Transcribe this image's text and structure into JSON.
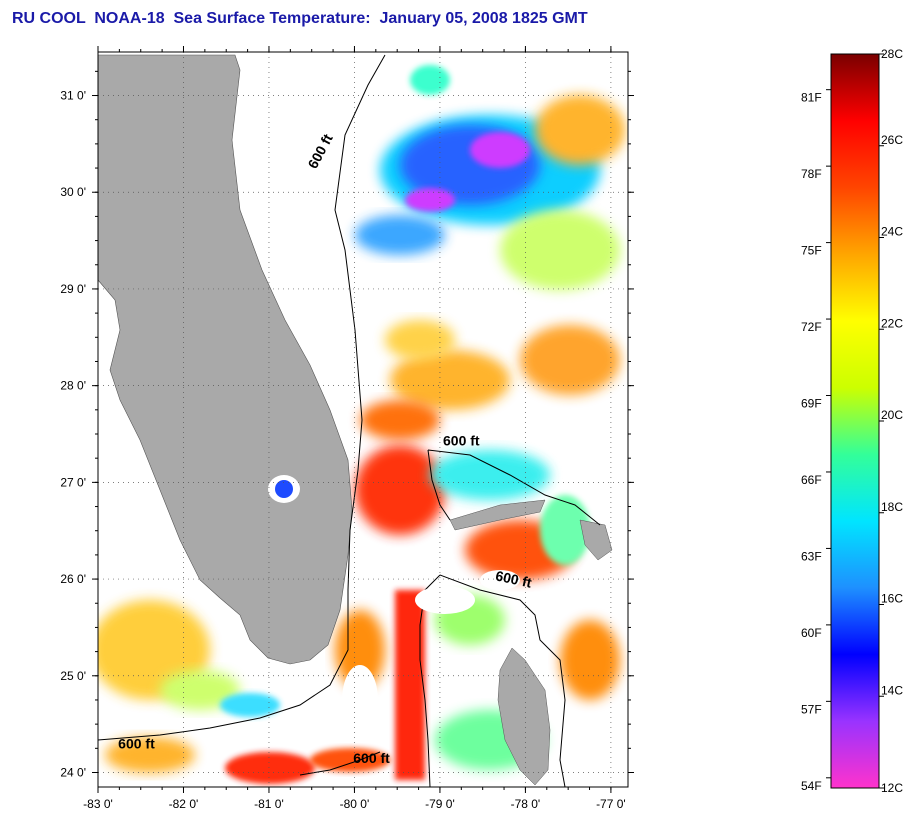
{
  "title": "RU COOL  NOAA-18  Sea Surface Temperature:  January 05, 2008 1825 GMT",
  "map": {
    "lon_range": [
      -83,
      -76.8
    ],
    "lat_range": [
      23.85,
      31.45
    ],
    "lon_ticks": [
      {
        "value": -83,
        "label": "-83 0'"
      },
      {
        "value": -82,
        "label": "-82 0'"
      },
      {
        "value": -81,
        "label": "-81 0'"
      },
      {
        "value": -80,
        "label": "-80 0'"
      },
      {
        "value": -79,
        "label": "-79 0'"
      },
      {
        "value": -78,
        "label": "-78 0'"
      },
      {
        "value": -77,
        "label": "-77 0'"
      }
    ],
    "lat_ticks": [
      {
        "value": 24,
        "label": "24 0'"
      },
      {
        "value": 25,
        "label": "25 0'"
      },
      {
        "value": 26,
        "label": "26 0'"
      },
      {
        "value": 27,
        "label": "27 0'"
      },
      {
        "value": 28,
        "label": "28 0'"
      },
      {
        "value": 29,
        "label": "29 0'"
      },
      {
        "value": 30,
        "label": "30 0'"
      },
      {
        "value": 31,
        "label": "31 0'"
      }
    ],
    "grid": true,
    "land_color": "#a9a9a9",
    "contour_labels": [
      {
        "text": "600 ft",
        "lon": -80.35,
        "lat": 30.4
      },
      {
        "text": "600 ft",
        "lon": -78.75,
        "lat": 27.38
      },
      {
        "text": "600 ft",
        "lon": -78.15,
        "lat": 25.95
      },
      {
        "text": "600 ft",
        "lon": -82.55,
        "lat": 24.25
      },
      {
        "text": "600 ft",
        "lon": -79.8,
        "lat": 24.1
      }
    ]
  },
  "colorbar": {
    "colors": [
      "#ff33cc",
      "#9933ff",
      "#0000ff",
      "#1e90ff",
      "#00e5ff",
      "#33ff99",
      "#ccff00",
      "#ffff00",
      "#ffa500",
      "#ff4500",
      "#ff0000",
      "#7a0000"
    ],
    "celsius_range": [
      12,
      28
    ],
    "celsius_labels": [
      "12C",
      "14C",
      "16C",
      "18C",
      "20C",
      "22C",
      "24C",
      "26C",
      "28C"
    ],
    "fahrenheit_labels": [
      {
        "value": 54,
        "label": "54F"
      },
      {
        "value": 57,
        "label": "57F"
      },
      {
        "value": 60,
        "label": "60F"
      },
      {
        "value": 63,
        "label": "63F"
      },
      {
        "value": 66,
        "label": "66F"
      },
      {
        "value": 69,
        "label": "69F"
      },
      {
        "value": 72,
        "label": "72F"
      },
      {
        "value": 75,
        "label": "75F"
      },
      {
        "value": 78,
        "label": "78F"
      },
      {
        "value": 81,
        "label": "81F"
      }
    ]
  }
}
